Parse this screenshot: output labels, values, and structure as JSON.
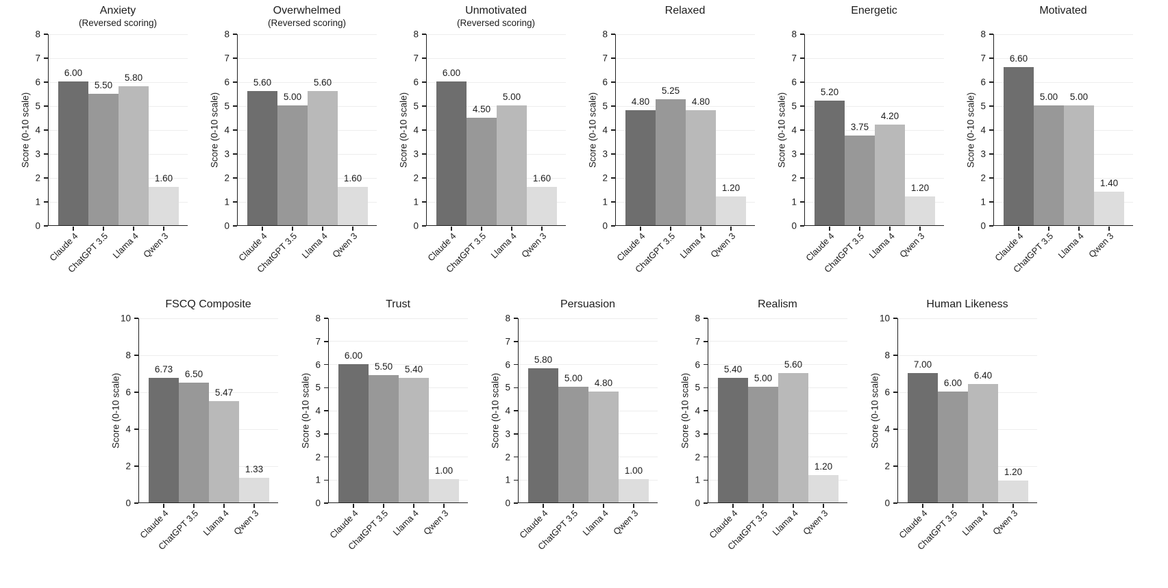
{
  "figure": {
    "background": "#ffffff",
    "axis_color": "#1f1f1f",
    "text_color": "#1c1c1c",
    "grid_color": "#ededed",
    "bar_colors": [
      "#6e6e6e",
      "#989898",
      "#b9b9b9",
      "#dddddd"
    ],
    "categories": [
      "Claude 4",
      "ChatGPT 3.5",
      "Llama 4",
      "Qwen 3"
    ],
    "ylabel": "Score (0-10 scale)"
  },
  "chart_data": [
    {
      "type": "bar",
      "row": 0,
      "title": "Anxiety",
      "subtitle": "(Reversed scoring)",
      "categories": [
        "Claude 4",
        "ChatGPT 3.5",
        "Llama 4",
        "Qwen 3"
      ],
      "values": [
        6.0,
        5.5,
        5.8,
        1.6
      ],
      "value_labels": [
        "6.00",
        "5.50",
        "5.80",
        "1.60"
      ],
      "ylabel": "Score (0-10 scale)",
      "ylim": [
        0,
        8
      ],
      "yticks": [
        0,
        1,
        2,
        3,
        4,
        5,
        6,
        7,
        8
      ],
      "grid": true,
      "legend": "none"
    },
    {
      "type": "bar",
      "row": 0,
      "title": "Overwhelmed",
      "subtitle": "(Reversed scoring)",
      "categories": [
        "Claude 4",
        "ChatGPT 3.5",
        "Llama 4",
        "Qwen 3"
      ],
      "values": [
        5.6,
        5.0,
        5.6,
        1.6
      ],
      "value_labels": [
        "5.60",
        "5.00",
        "5.60",
        "1.60"
      ],
      "ylabel": "Score (0-10 scale)",
      "ylim": [
        0,
        8
      ],
      "yticks": [
        0,
        1,
        2,
        3,
        4,
        5,
        6,
        7,
        8
      ],
      "grid": true,
      "legend": "none"
    },
    {
      "type": "bar",
      "row": 0,
      "title": "Unmotivated",
      "subtitle": "(Reversed scoring)",
      "categories": [
        "Claude 4",
        "ChatGPT 3.5",
        "Llama 4",
        "Qwen 3"
      ],
      "values": [
        6.0,
        4.5,
        5.0,
        1.6
      ],
      "value_labels": [
        "6.00",
        "4.50",
        "5.00",
        "1.60"
      ],
      "ylabel": "Score (0-10 scale)",
      "ylim": [
        0,
        8
      ],
      "yticks": [
        0,
        1,
        2,
        3,
        4,
        5,
        6,
        7,
        8
      ],
      "grid": true,
      "legend": "none"
    },
    {
      "type": "bar",
      "row": 0,
      "title": "Relaxed",
      "subtitle": "",
      "categories": [
        "Claude 4",
        "ChatGPT 3.5",
        "Llama 4",
        "Qwen 3"
      ],
      "values": [
        4.8,
        5.25,
        4.8,
        1.2
      ],
      "value_labels": [
        "4.80",
        "5.25",
        "4.80",
        "1.20"
      ],
      "ylabel": "Score (0-10 scale)",
      "ylim": [
        0,
        8
      ],
      "yticks": [
        0,
        1,
        2,
        3,
        4,
        5,
        6,
        7,
        8
      ],
      "grid": true,
      "legend": "none"
    },
    {
      "type": "bar",
      "row": 0,
      "title": "Energetic",
      "subtitle": "",
      "categories": [
        "Claude 4",
        "ChatGPT 3.5",
        "Llama 4",
        "Qwen 3"
      ],
      "values": [
        5.2,
        3.75,
        4.2,
        1.2
      ],
      "value_labels": [
        "5.20",
        "3.75",
        "4.20",
        "1.20"
      ],
      "ylabel": "Score (0-10 scale)",
      "ylim": [
        0,
        8
      ],
      "yticks": [
        0,
        1,
        2,
        3,
        4,
        5,
        6,
        7,
        8
      ],
      "grid": true,
      "legend": "none"
    },
    {
      "type": "bar",
      "row": 0,
      "title": "Motivated",
      "subtitle": "",
      "categories": [
        "Claude 4",
        "ChatGPT 3.5",
        "Llama 4",
        "Qwen 3"
      ],
      "values": [
        6.6,
        5.0,
        5.0,
        1.4
      ],
      "value_labels": [
        "6.60",
        "5.00",
        "5.00",
        "1.40"
      ],
      "ylabel": "Score (0-10 scale)",
      "ylim": [
        0,
        8
      ],
      "yticks": [
        0,
        1,
        2,
        3,
        4,
        5,
        6,
        7,
        8
      ],
      "grid": true,
      "legend": "none"
    },
    {
      "type": "bar",
      "row": 1,
      "title": "FSCQ Composite",
      "subtitle": "",
      "categories": [
        "Claude 4",
        "ChatGPT 3.5",
        "Llama 4",
        "Qwen 3"
      ],
      "values": [
        6.73,
        6.5,
        5.47,
        1.33
      ],
      "value_labels": [
        "6.73",
        "6.50",
        "5.47",
        "1.33"
      ],
      "ylabel": "Score (0-10 scale)",
      "ylim": [
        0,
        10
      ],
      "yticks": [
        0,
        2,
        4,
        6,
        8,
        10
      ],
      "grid": true,
      "legend": "none"
    },
    {
      "type": "bar",
      "row": 1,
      "title": "Trust",
      "subtitle": "",
      "categories": [
        "Claude 4",
        "ChatGPT 3.5",
        "Llama 4",
        "Qwen 3"
      ],
      "values": [
        6.0,
        5.5,
        5.4,
        1.0
      ],
      "value_labels": [
        "6.00",
        "5.50",
        "5.40",
        "1.00"
      ],
      "ylabel": "Score (0-10 scale)",
      "ylim": [
        0,
        8
      ],
      "yticks": [
        0,
        1,
        2,
        3,
        4,
        5,
        6,
        7,
        8
      ],
      "grid": true,
      "legend": "none"
    },
    {
      "type": "bar",
      "row": 1,
      "title": "Persuasion",
      "subtitle": "",
      "categories": [
        "Claude 4",
        "ChatGPT 3.5",
        "Llama 4",
        "Qwen 3"
      ],
      "values": [
        5.8,
        5.0,
        4.8,
        1.0
      ],
      "value_labels": [
        "5.80",
        "5.00",
        "4.80",
        "1.00"
      ],
      "ylabel": "Score (0-10 scale)",
      "ylim": [
        0,
        8
      ],
      "yticks": [
        0,
        1,
        2,
        3,
        4,
        5,
        6,
        7,
        8
      ],
      "grid": true,
      "legend": "none"
    },
    {
      "type": "bar",
      "row": 1,
      "title": "Realism",
      "subtitle": "",
      "categories": [
        "Claude 4",
        "ChatGPT 3.5",
        "Llama 4",
        "Qwen 3"
      ],
      "values": [
        5.4,
        5.0,
        5.6,
        1.2
      ],
      "value_labels": [
        "5.40",
        "5.00",
        "5.60",
        "1.20"
      ],
      "ylabel": "Score (0-10 scale)",
      "ylim": [
        0,
        8
      ],
      "yticks": [
        0,
        1,
        2,
        3,
        4,
        5,
        6,
        7,
        8
      ],
      "grid": true,
      "legend": "none"
    },
    {
      "type": "bar",
      "row": 1,
      "title": "Human Likeness",
      "subtitle": "",
      "categories": [
        "Claude 4",
        "ChatGPT 3.5",
        "Llama 4",
        "Qwen 3"
      ],
      "values": [
        7.0,
        6.0,
        6.4,
        1.2
      ],
      "value_labels": [
        "7.00",
        "6.00",
        "6.40",
        "1.20"
      ],
      "ylabel": "Score (0-10 scale)",
      "ylim": [
        0,
        10
      ],
      "yticks": [
        0,
        2,
        4,
        6,
        8,
        10
      ],
      "grid": true,
      "legend": "none"
    }
  ]
}
